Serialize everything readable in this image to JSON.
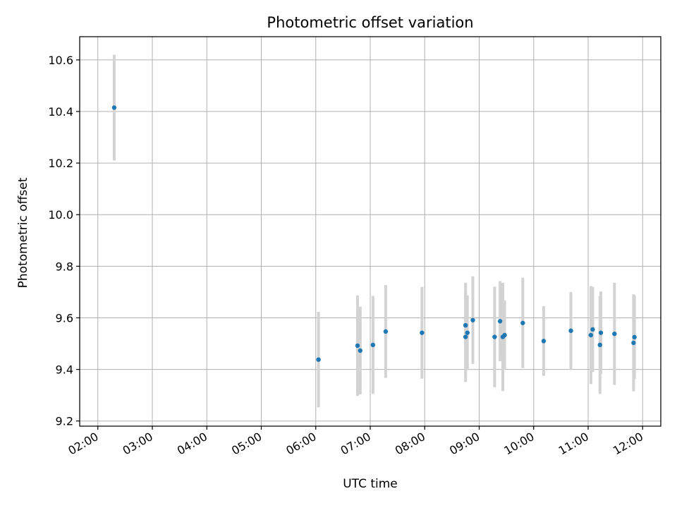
{
  "chart_data": {
    "type": "scatter",
    "title": "Photometric offset variation",
    "xlabel": "UTC time",
    "ylabel": "Photometric offset",
    "x_ticks": [
      "02:00",
      "03:00",
      "04:00",
      "05:00",
      "06:00",
      "07:00",
      "08:00",
      "09:00",
      "10:00",
      "11:00",
      "12:00"
    ],
    "y_ticks": [
      "9.2",
      "9.4",
      "9.6",
      "9.8",
      "10.0",
      "10.2",
      "10.4",
      "10.6"
    ],
    "xlim": [
      "01:40",
      "12:20"
    ],
    "ylim": [
      9.18,
      10.69
    ],
    "grid": true,
    "marker_color": "#1f77b4",
    "errorbar_color": "#d3d3d3",
    "points": [
      {
        "x": "02:18",
        "y": 10.415,
        "err": 0.205
      },
      {
        "x": "06:03",
        "y": 9.438,
        "err": 0.185
      },
      {
        "x": "06:46",
        "y": 9.492,
        "err": 0.195
      },
      {
        "x": "06:49",
        "y": 9.473,
        "err": 0.17
      },
      {
        "x": "07:03",
        "y": 9.495,
        "err": 0.19
      },
      {
        "x": "07:17",
        "y": 9.547,
        "err": 0.18
      },
      {
        "x": "07:57",
        "y": 9.542,
        "err": 0.178
      },
      {
        "x": "08:45",
        "y": 9.571,
        "err": 0.165
      },
      {
        "x": "08:45",
        "y": 9.526,
        "err": 0.175
      },
      {
        "x": "08:47",
        "y": 9.542,
        "err": 0.145
      },
      {
        "x": "08:53",
        "y": 9.591,
        "err": 0.17
      },
      {
        "x": "09:17",
        "y": 9.526,
        "err": 0.195
      },
      {
        "x": "09:23",
        "y": 9.587,
        "err": 0.155
      },
      {
        "x": "09:26",
        "y": 9.526,
        "err": 0.21
      },
      {
        "x": "09:28",
        "y": 9.533,
        "err": 0.135
      },
      {
        "x": "09:48",
        "y": 9.58,
        "err": 0.175
      },
      {
        "x": "10:11",
        "y": 9.51,
        "err": 0.135
      },
      {
        "x": "10:41",
        "y": 9.55,
        "err": 0.15
      },
      {
        "x": "11:03",
        "y": 9.533,
        "err": 0.19
      },
      {
        "x": "11:05",
        "y": 9.555,
        "err": 0.165
      },
      {
        "x": "11:13",
        "y": 9.495,
        "err": 0.19
      },
      {
        "x": "11:14",
        "y": 9.542,
        "err": 0.16
      },
      {
        "x": "11:29",
        "y": 9.538,
        "err": 0.198
      },
      {
        "x": "11:50",
        "y": 9.503,
        "err": 0.188
      },
      {
        "x": "11:51",
        "y": 9.525,
        "err": 0.162
      }
    ]
  }
}
